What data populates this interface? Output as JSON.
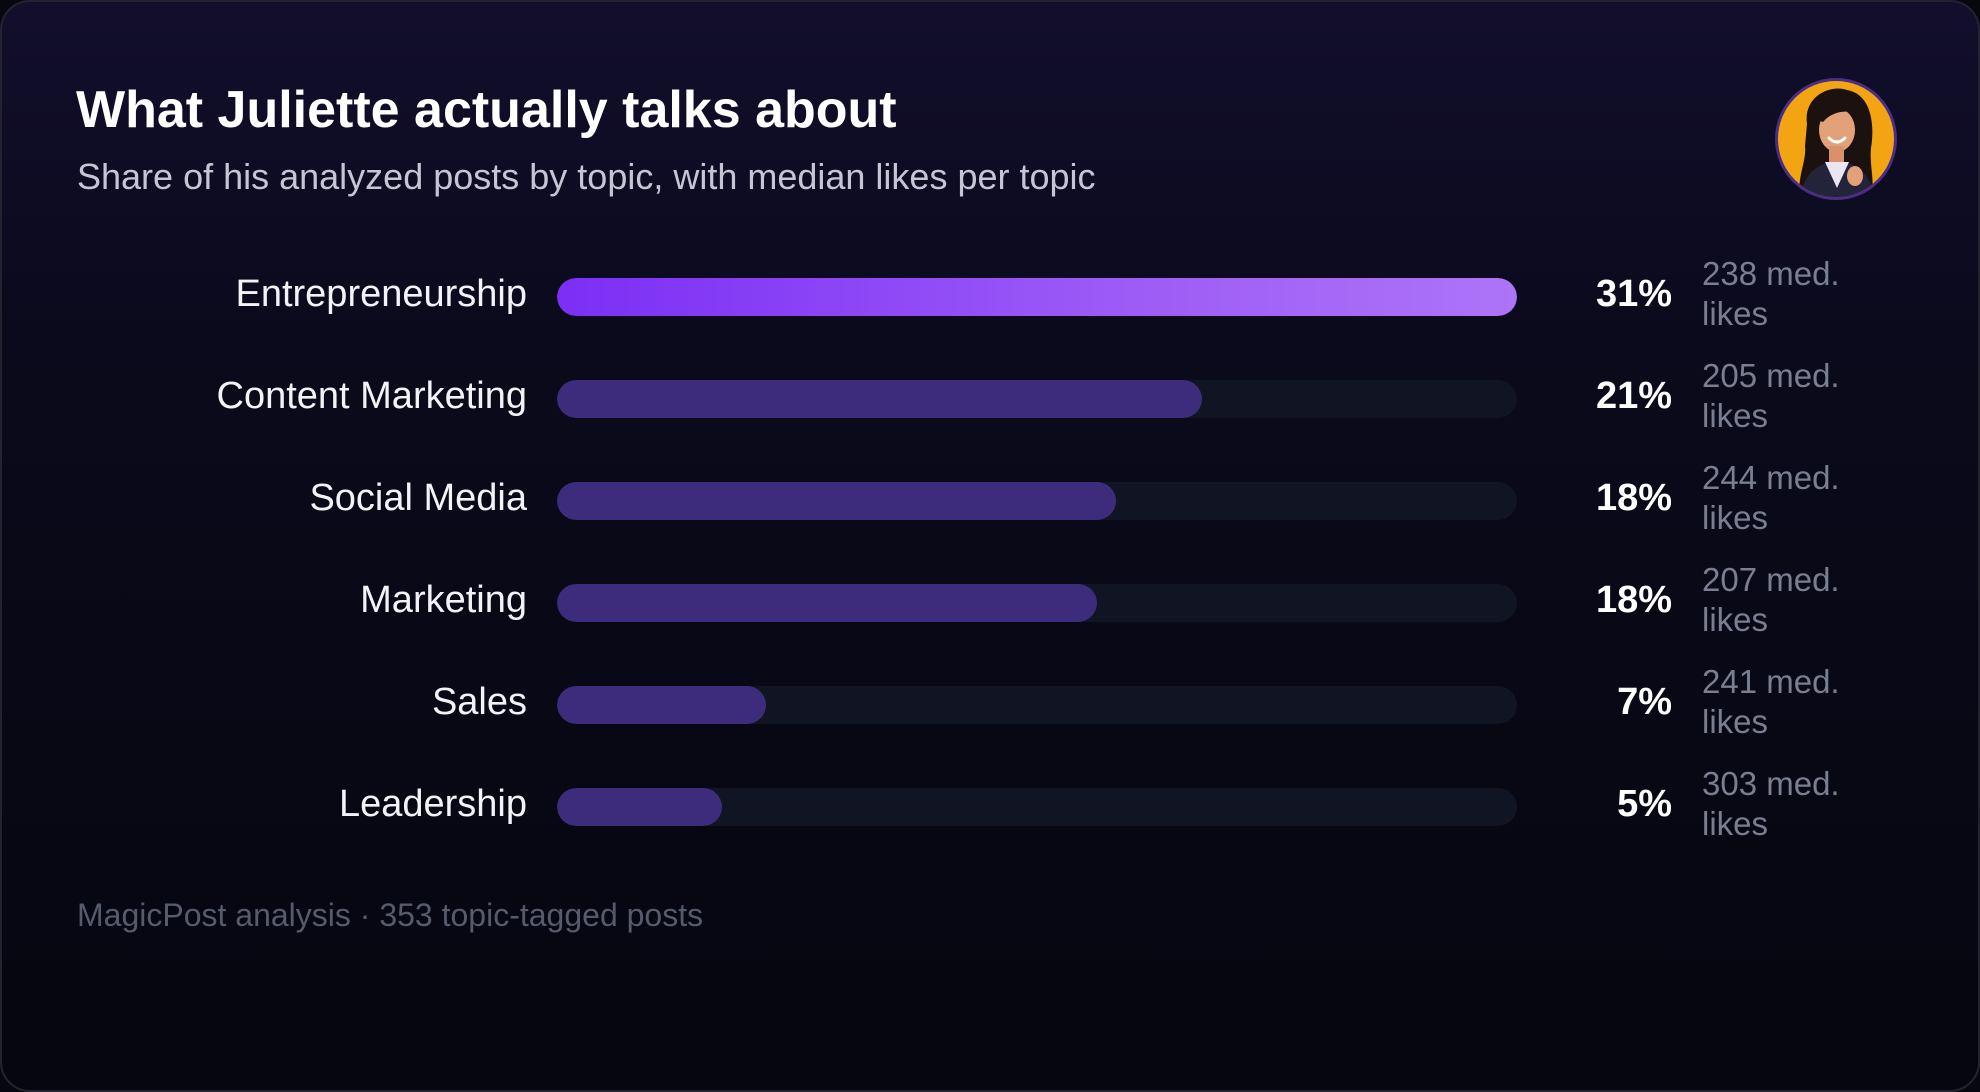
{
  "header": {
    "title": "What Juliette actually talks about",
    "subtitle": "Share of his analyzed posts by topic, with median likes per topic"
  },
  "footer": {
    "source": "MagicPost analysis · 353 topic-tagged posts"
  },
  "colors": {
    "lead_bar_start": "#7b2ff5",
    "lead_bar_end": "#ad74f8",
    "bar": "#3d2b7c",
    "track": "#111422",
    "avatar_bg": "#f2a413",
    "avatar_ring": "#4a2d86"
  },
  "icons": {
    "avatar": "person-portrait-avatar"
  },
  "chart_data": {
    "type": "bar",
    "orientation": "horizontal",
    "title": "What Juliette actually talks about",
    "subtitle": "Share of his analyzed posts by topic, with median likes per topic",
    "categories": [
      "Entrepreneurship",
      "Content Marketing",
      "Social Media",
      "Marketing",
      "Sales",
      "Leadership"
    ],
    "values": [
      31,
      21,
      18,
      18,
      7,
      5
    ],
    "bar_fill_fractions": [
      1.0,
      0.672,
      0.582,
      0.563,
      0.218,
      0.172
    ],
    "value_labels": [
      "31%",
      "21%",
      "18%",
      "18%",
      "7%",
      "5%"
    ],
    "median_likes_labels": [
      "238 med. likes",
      "205 med. likes",
      "244 med. likes",
      "207 med. likes",
      "241 med. likes",
      "303 med. likes"
    ],
    "median_likes": [
      238,
      205,
      244,
      207,
      241,
      303
    ],
    "unit": "%",
    "xlabel": "",
    "ylabel": "",
    "grid": false,
    "legend": "none"
  }
}
